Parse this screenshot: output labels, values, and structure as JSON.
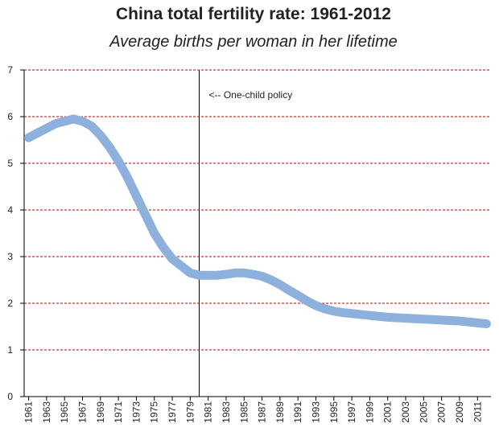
{
  "chart_data": {
    "type": "line",
    "title": "China total fertility rate: 1961-2012",
    "subtitle": "Average births per woman in her lifetime",
    "x": [
      1961,
      1962,
      1963,
      1964,
      1965,
      1966,
      1967,
      1968,
      1969,
      1970,
      1971,
      1972,
      1973,
      1974,
      1975,
      1976,
      1977,
      1978,
      1979,
      1980,
      1981,
      1982,
      1983,
      1984,
      1985,
      1986,
      1987,
      1988,
      1989,
      1990,
      1991,
      1992,
      1993,
      1994,
      1995,
      1996,
      1997,
      1998,
      1999,
      2000,
      2001,
      2002,
      2003,
      2004,
      2005,
      2006,
      2007,
      2008,
      2009,
      2010,
      2011,
      2012
    ],
    "series": [
      {
        "name": "Total fertility rate",
        "color": "#8eb0dc",
        "values": [
          5.55,
          5.65,
          5.75,
          5.85,
          5.9,
          5.95,
          5.9,
          5.8,
          5.6,
          5.35,
          5.05,
          4.7,
          4.3,
          3.9,
          3.5,
          3.2,
          2.95,
          2.8,
          2.65,
          2.6,
          2.6,
          2.6,
          2.62,
          2.65,
          2.65,
          2.62,
          2.58,
          2.5,
          2.4,
          2.28,
          2.17,
          2.05,
          1.95,
          1.88,
          1.83,
          1.8,
          1.78,
          1.76,
          1.74,
          1.72,
          1.7,
          1.69,
          1.68,
          1.67,
          1.66,
          1.65,
          1.64,
          1.63,
          1.62,
          1.6,
          1.58,
          1.56
        ]
      }
    ],
    "xlim": [
      1960.5,
      2012.5
    ],
    "xticks": [
      1961,
      1963,
      1965,
      1967,
      1969,
      1971,
      1973,
      1975,
      1977,
      1979,
      1981,
      1983,
      1985,
      1987,
      1989,
      1991,
      1993,
      1995,
      1997,
      1999,
      2001,
      2003,
      2005,
      2007,
      2009,
      2011
    ],
    "ylim": [
      0,
      7
    ],
    "yticks": [
      0,
      1,
      2,
      3,
      4,
      5,
      6,
      7
    ],
    "grid": true,
    "grid_color": "#cc0000",
    "annotations": [
      {
        "x": 1980,
        "text": "<-- One-child policy"
      }
    ]
  }
}
